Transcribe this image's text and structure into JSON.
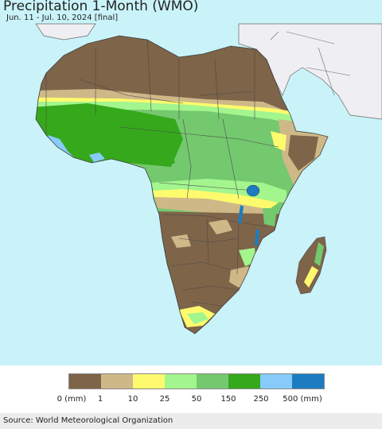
{
  "header": {
    "title": "Precipitation 1-Month (WMO)",
    "subtitle": "Jun. 11 - Jul. 10, 2024 [final]"
  },
  "map": {
    "region": "Africa",
    "ocean_color": "#c9f3f8",
    "non_africa_land_color": "#efeef3",
    "border_color": "#4a4a4a"
  },
  "legend": {
    "colors": [
      "#7e6448",
      "#cfb888",
      "#fdfb6d",
      "#a3f58d",
      "#74c96f",
      "#35a81c",
      "#87cbfa",
      "#1d7cc1"
    ],
    "labels": [
      "0 (mm)",
      "1",
      "10",
      "25",
      "50",
      "150",
      "250",
      "500 (mm)"
    ]
  },
  "footer": {
    "source": "Source: World Meteorological Organization"
  }
}
